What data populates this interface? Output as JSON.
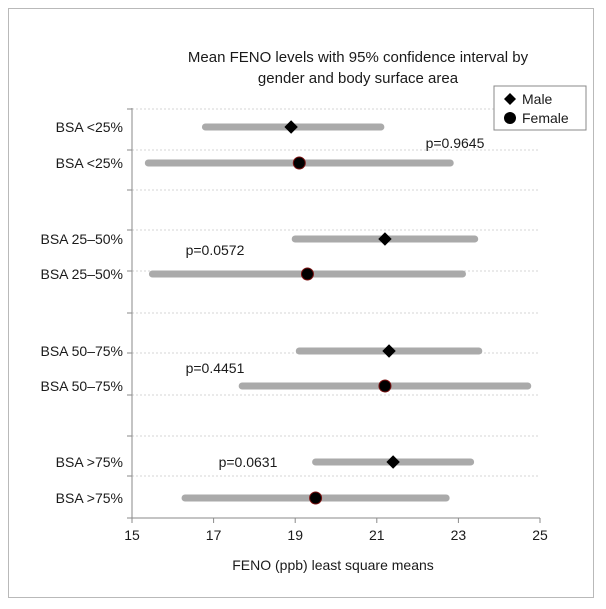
{
  "chart_data": {
    "type": "forest",
    "title_lines": [
      "Mean FENO levels with 95% confidence interval by",
      "gender and body surface area"
    ],
    "xlabel": "FENO (ppb) least square means",
    "xlim": [
      15,
      25
    ],
    "xticks": [
      15,
      17,
      19,
      21,
      23,
      25
    ],
    "grid": true,
    "legend_position": "top-right",
    "series": [
      {
        "name": "Male",
        "marker": "diamond"
      },
      {
        "name": "Female",
        "marker": "circle"
      }
    ],
    "rows": [
      {
        "label": "BSA <25%",
        "series": "Male",
        "estimate": 18.9,
        "lower": 16.8,
        "upper": 21.1
      },
      {
        "label": "BSA <25%",
        "series": "Female",
        "estimate": 19.1,
        "lower": 15.4,
        "upper": 22.8
      },
      {
        "label": "BSA 25–50%",
        "series": "Male",
        "estimate": 21.2,
        "lower": 19.0,
        "upper": 23.4
      },
      {
        "label": "BSA 25–50%",
        "series": "Female",
        "estimate": 19.3,
        "lower": 15.5,
        "upper": 23.1
      },
      {
        "label": "BSA 50–75%",
        "series": "Male",
        "estimate": 21.3,
        "lower": 19.1,
        "upper": 23.5
      },
      {
        "label": "BSA 50–75%",
        "series": "Female",
        "estimate": 21.2,
        "lower": 17.7,
        "upper": 24.7
      },
      {
        "label": "BSA >75%",
        "series": "Male",
        "estimate": 21.4,
        "lower": 19.5,
        "upper": 23.3
      },
      {
        "label": "BSA >75%",
        "series": "Female",
        "estimate": 19.5,
        "lower": 16.3,
        "upper": 22.7
      }
    ],
    "annotations": [
      {
        "text": "p=0.9645",
        "group": "BSA <25%"
      },
      {
        "text": "p=0.0572",
        "group": "BSA 25–50%"
      },
      {
        "text": "p=0.4451",
        "group": "BSA 50–75%"
      },
      {
        "text": "p=0.0631",
        "group": "BSA >75%"
      }
    ],
    "colors": {
      "ci_bar": "#aaaaaa",
      "marker_stroke": "#000000",
      "marker_fill": "#000000",
      "gridline": "#d4d4d4"
    }
  }
}
